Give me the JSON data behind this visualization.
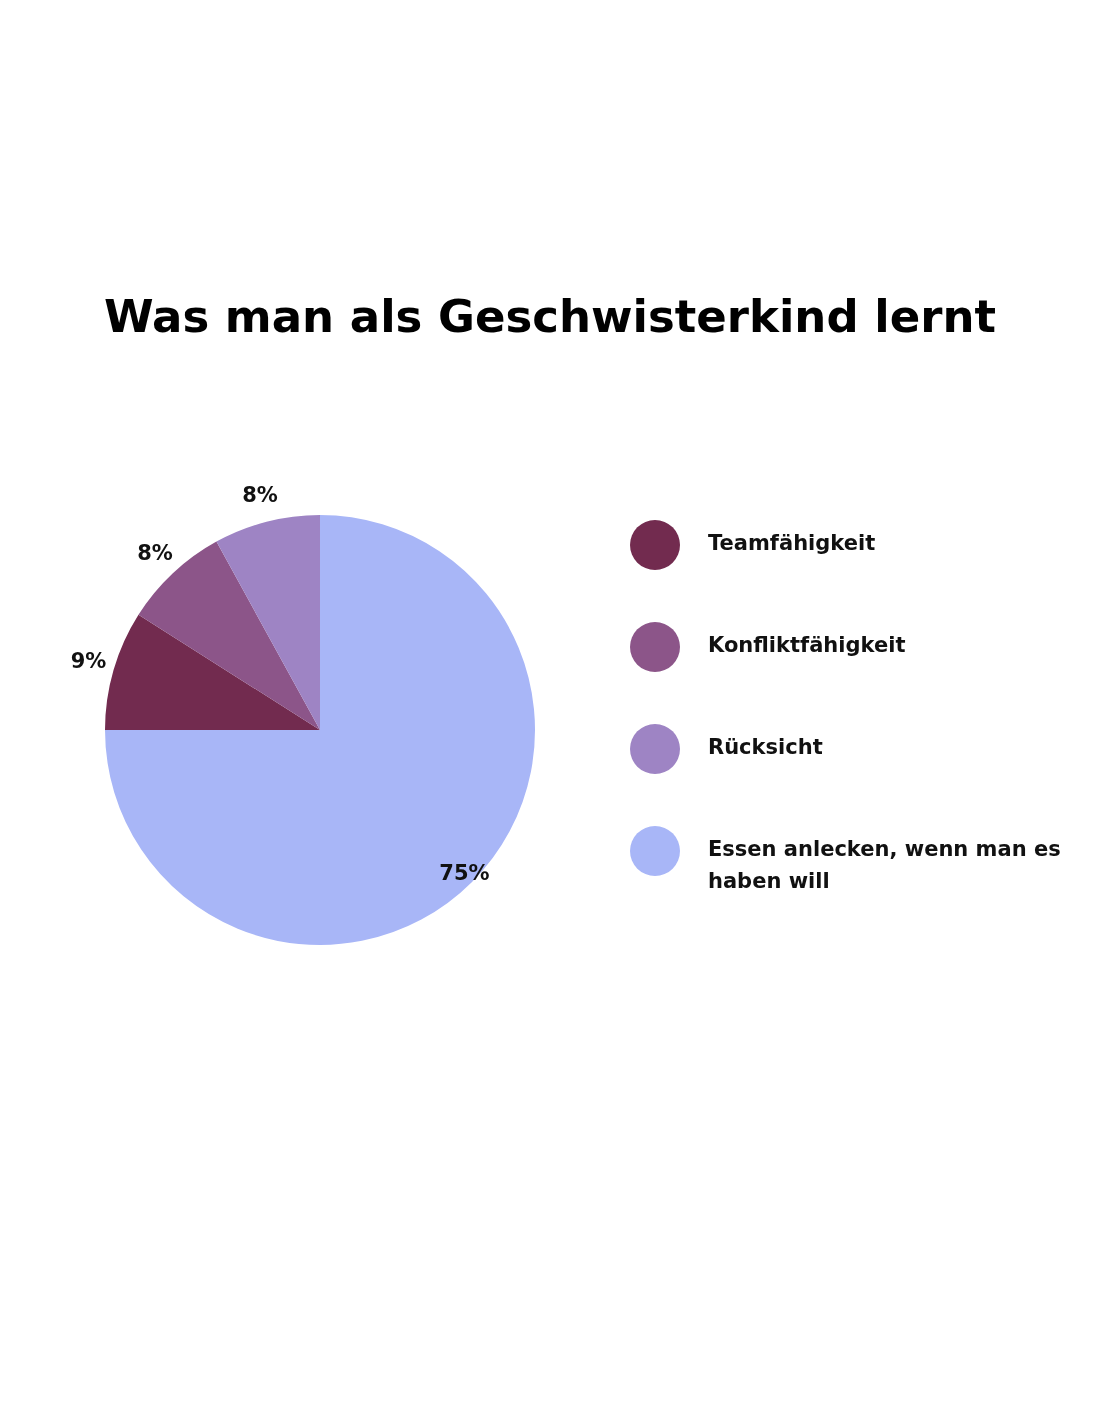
{
  "chart_data": {
    "type": "pie",
    "title": "Was man als Geschwisterkind lernt",
    "categories": [
      "Teamfähigkeit",
      "Konfliktfähigkeit",
      "Rücksicht",
      "Essen anlecken, wenn man es haben will"
    ],
    "values": [
      9,
      8,
      8,
      75
    ],
    "colors": [
      "#722b4f",
      "#8c5589",
      "#9e84c4",
      "#a8b6f7"
    ],
    "value_labels": [
      "9%",
      "8%",
      "8%",
      "75%"
    ],
    "legend": "right"
  }
}
